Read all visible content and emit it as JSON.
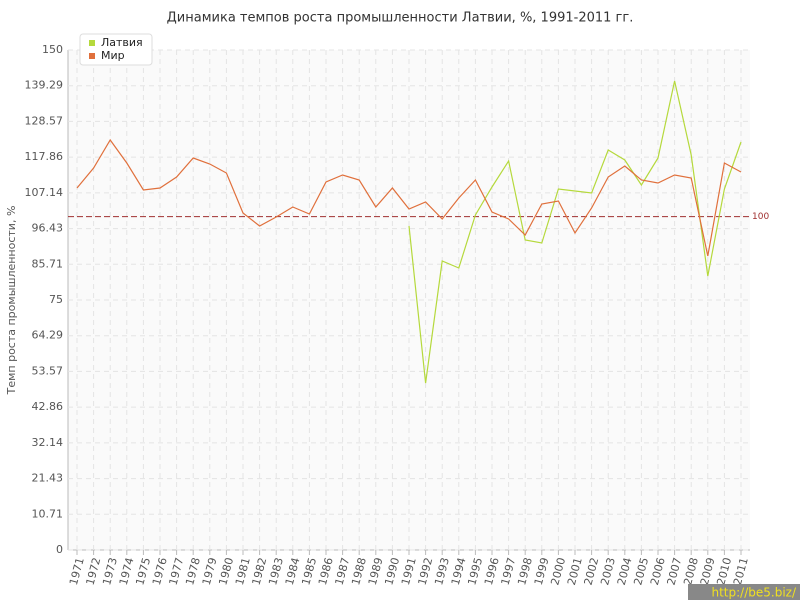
{
  "chart_data": {
    "type": "line",
    "title": "Динамика темпов роста промышленности Латвии, %, 1991-2011 гг.",
    "y_label": "Темп роста промышленности, %",
    "categories": [
      "1971",
      "1972",
      "1973",
      "1974",
      "1975",
      "1976",
      "1977",
      "1978",
      "1979",
      "1980",
      "1981",
      "1982",
      "1983",
      "1984",
      "1985",
      "1986",
      "1987",
      "1988",
      "1989",
      "1990",
      "1991",
      "1992",
      "1993",
      "1994",
      "1995",
      "1996",
      "1997",
      "1998",
      "1999",
      "2000",
      "2001",
      "2002",
      "2003",
      "2004",
      "2005",
      "2006",
      "2007",
      "2008",
      "2009",
      "2010",
      "2011"
    ],
    "series": [
      {
        "name": "Латвия",
        "color": "#b5d93c",
        "values": [
          null,
          null,
          null,
          null,
          null,
          null,
          null,
          null,
          null,
          null,
          null,
          null,
          null,
          null,
          null,
          null,
          null,
          null,
          null,
          null,
          97.2,
          50.1,
          86.7,
          84.6,
          100.5,
          108.9,
          116.7,
          93,
          92.1,
          108.3,
          107.7,
          107.1,
          120,
          117,
          109.5,
          117.6,
          140.7,
          118.5,
          82.2,
          108.3,
          122.4
        ]
      },
      {
        "name": "Мир",
        "color": "#e0703c",
        "values": [
          108.6,
          114.6,
          123,
          116.1,
          108,
          108.6,
          111.9,
          117.6,
          115.8,
          113.1,
          101.1,
          97.2,
          99.9,
          102.9,
          100.8,
          110.4,
          112.5,
          111,
          102.9,
          108.6,
          102.3,
          104.4,
          99.3,
          105.6,
          111,
          101.4,
          99.3,
          94.5,
          103.8,
          104.7,
          95.1,
          102.6,
          111.9,
          115.2,
          111,
          110.1,
          112.5,
          111.6,
          88.2,
          116.1,
          113.4
        ]
      }
    ],
    "reference_line": 100,
    "reference_color": "#a03030",
    "ylim": [
      0,
      150
    ],
    "yticks": [
      0,
      10.71,
      21.43,
      32.14,
      42.86,
      53.57,
      64.29,
      75,
      85.71,
      96.43,
      107.14,
      117.86,
      128.57,
      139.29,
      150
    ],
    "grid": true,
    "legend": "top-left",
    "watermark": "http://be5.biz/"
  }
}
